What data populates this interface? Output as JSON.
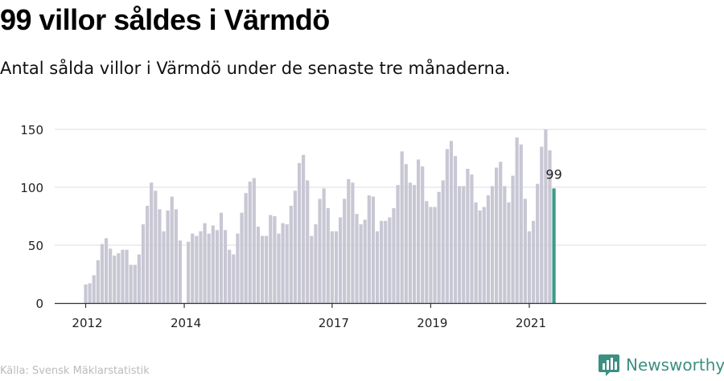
{
  "title": "99 villor såldes i Värmdö",
  "subtitle": "Antal sålda villor i Värmdö under de senaste tre månaderna.",
  "source": "Källa: Svensk Mäklarstatistik",
  "brand": {
    "name": "Newsworthy",
    "icon": "newsworthy-logo-icon",
    "color": "#3d8f82"
  },
  "colors": {
    "bar": "#c8c7d4",
    "highlight": "#3d9a8b",
    "grid": "#dddddd",
    "axis": "#333333"
  },
  "chart_data": {
    "type": "bar",
    "title": "",
    "xlabel": "",
    "ylabel": "",
    "x_start": "2012-01",
    "x_ticks": [
      "2012",
      "2014",
      "2017",
      "2019",
      "2021"
    ],
    "y_ticks": [
      0,
      50,
      100,
      150
    ],
    "ylim": [
      0,
      150
    ],
    "grid": true,
    "highlight_label": "99",
    "series": [
      {
        "values": [
          16,
          17,
          24,
          37,
          51,
          56,
          47,
          41,
          43,
          46,
          46,
          33,
          33,
          42,
          68,
          84,
          104,
          97,
          81,
          62,
          80,
          92,
          81,
          54,
          0,
          53,
          60,
          58,
          62,
          69,
          60,
          67,
          63,
          78,
          63,
          46,
          42,
          60,
          78,
          95,
          105,
          108,
          66,
          58,
          58,
          76,
          75,
          60,
          69,
          68,
          84,
          97,
          121,
          128,
          106,
          58,
          68,
          90,
          99,
          82,
          62,
          62,
          74,
          90,
          107,
          104,
          77,
          68,
          72,
          93,
          92,
          62,
          71,
          71,
          74,
          82,
          102,
          131,
          120,
          104,
          102,
          124,
          118,
          88,
          83,
          83,
          96,
          106,
          133,
          140,
          127,
          101,
          101,
          116,
          111,
          87,
          80,
          83,
          93,
          101,
          117,
          122,
          101,
          87,
          110,
          143,
          137,
          90,
          62,
          71,
          103,
          135,
          150,
          132,
          99
        ]
      }
    ]
  }
}
